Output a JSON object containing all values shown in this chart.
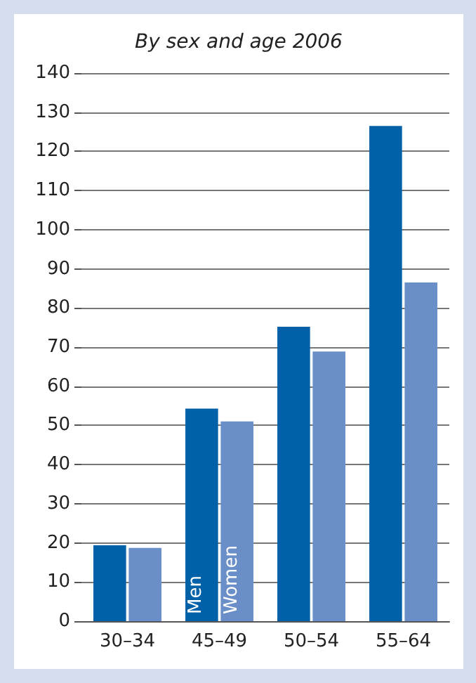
{
  "chart_data": {
    "type": "bar",
    "title": "By sex and age 2006",
    "categories": [
      "30–34",
      "45–49",
      "50–54",
      "55–64"
    ],
    "series": [
      {
        "name": "Men",
        "color": "#0060a8",
        "values": [
          19.4,
          54.3,
          75.2,
          126.5
        ]
      },
      {
        "name": "Women",
        "color": "#6a8fc8",
        "values": [
          18.7,
          51,
          68.9,
          86.5
        ]
      }
    ],
    "ylim": [
      0,
      140
    ],
    "yticks": [
      0,
      10,
      20,
      30,
      40,
      50,
      60,
      70,
      80,
      90,
      100,
      110,
      120,
      130,
      140
    ],
    "grid": "y",
    "legend": false
  }
}
